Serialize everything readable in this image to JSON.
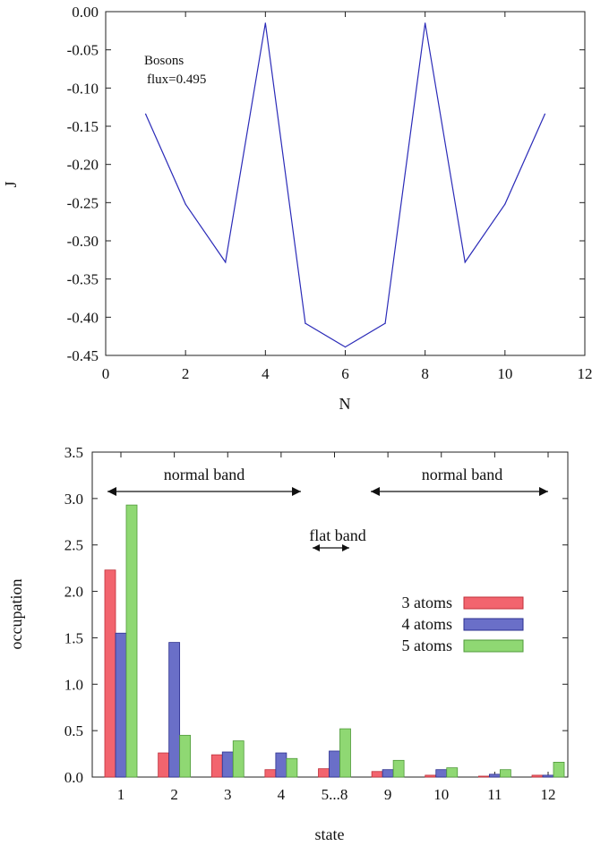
{
  "chart_data": [
    {
      "type": "line",
      "xlabel": "N",
      "ylabel": "J",
      "xlim": [
        0,
        12
      ],
      "ylim": [
        -0.45,
        0.0
      ],
      "xticks": [
        "0",
        "2",
        "4",
        "6",
        "8",
        "10",
        "12"
      ],
      "yticks": [
        "0.00",
        "-0.05",
        "-0.10",
        "-0.15",
        "-0.20",
        "-0.25",
        "-0.30",
        "-0.35",
        "-0.40",
        "-0.45"
      ],
      "annotation_line1": "Bosons",
      "annotation_line2": "flux=0.495",
      "line_color": "#2b2bb8",
      "x": [
        1,
        2,
        3,
        4,
        5,
        6,
        7,
        8,
        9,
        10,
        11
      ],
      "y": [
        -0.134,
        -0.252,
        -0.328,
        -0.015,
        -0.408,
        -0.439,
        -0.408,
        -0.015,
        -0.328,
        -0.252,
        -0.134
      ]
    },
    {
      "type": "bar",
      "xlabel": "state",
      "ylabel": "occupation",
      "ylim": [
        0,
        3.5
      ],
      "yticks": [
        "0.0",
        "0.5",
        "1.0",
        "1.5",
        "2.0",
        "2.5",
        "3.0",
        "3.5"
      ],
      "categories": [
        "1",
        "2",
        "3",
        "4",
        "5...8",
        "9",
        "10",
        "11",
        "12"
      ],
      "series": [
        {
          "name": "3 atoms",
          "color": "#f2646e",
          "values": [
            2.23,
            0.26,
            0.24,
            0.08,
            0.09,
            0.06,
            0.02,
            0.01,
            0.02
          ]
        },
        {
          "name": "4 atoms",
          "color": "#6a6fc8",
          "values": [
            1.55,
            1.45,
            0.27,
            0.26,
            0.28,
            0.08,
            0.08,
            0.03,
            0.02
          ]
        },
        {
          "name": "5 atoms",
          "color": "#8fd873",
          "values": [
            2.93,
            0.45,
            0.39,
            0.2,
            0.52,
            0.18,
            0.1,
            0.08,
            0.16
          ]
        }
      ],
      "annotations": {
        "normal_band_left": "normal band",
        "normal_band_right": "normal band",
        "flat_band": "flat band"
      }
    }
  ]
}
